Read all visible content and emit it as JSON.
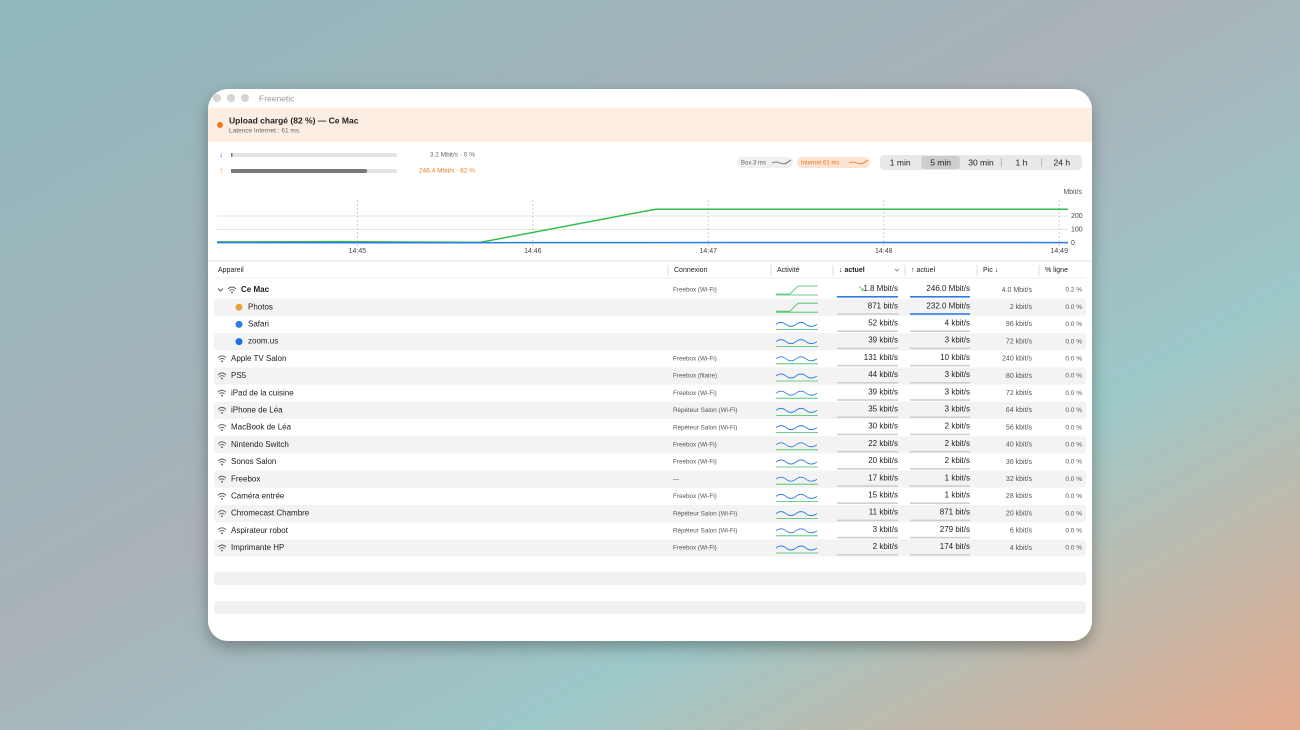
{
  "window_title": "Freenetic",
  "banner": {
    "title": "Upload chargé (82 %) — Ce Mac",
    "subtitle": "Latence Internet : 61 ms."
  },
  "meters": [
    {
      "label": "3.2 Mbit/s · 0 %",
      "percent": 0
    },
    {
      "label": "246.4 Mbit/s · 82 %",
      "percent": 82
    }
  ],
  "chips": [
    "Box 3 ms",
    "Internet 61 ms"
  ],
  "ranges": [
    "1 min",
    "5 min",
    "30 min",
    "1 h",
    "24 h"
  ],
  "selected_range": 1,
  "chart_data": {
    "type": "line",
    "y_label": "Mbit/s",
    "xlim": [
      44.2,
      49.05
    ],
    "xticks": [
      {
        "value": 45,
        "label": "14:45"
      },
      {
        "value": 46,
        "label": "14:46"
      },
      {
        "value": 47,
        "label": "14:47"
      },
      {
        "value": 48,
        "label": "14:48"
      },
      {
        "value": 49,
        "label": "14:49"
      }
    ],
    "ylim": [
      0,
      270
    ],
    "yticks": [
      0,
      100,
      200
    ],
    "series": [
      {
        "color": "#2fbf4f",
        "x": [
          44.2,
          44.9,
          45.7,
          46.7,
          49.05
        ],
        "values": [
          8,
          10,
          5,
          250,
          250
        ]
      },
      {
        "color": "#2f7ce0",
        "x": [
          44.2,
          45.5,
          46.5,
          48,
          49.05
        ],
        "values": [
          3,
          2,
          3,
          4,
          3
        ]
      }
    ]
  },
  "table": {
    "headers": [
      "Appareil",
      "Connexion",
      "Activité",
      "↓ actuel",
      "↑ actuel",
      "Pic ↓",
      "% ligne"
    ],
    "rows": [
      {
        "name": "Ce Mac",
        "connection": "Freebox (Wi-Fi)",
        "down": "1.8 Mbit/s",
        "up": "246.0 Mbit/s",
        "peak": "4.0 Mbit/s",
        "share": "0.2 %",
        "children": [
          {
            "name": "Photos",
            "down": "871 bit/s",
            "up": "232.0 Mbit/s",
            "peak": "2 kbit/s",
            "share": "0.0 %"
          },
          {
            "name": "Safari",
            "down": "52 kbit/s",
            "up": "4 kbit/s",
            "peak": "96 kbit/s",
            "share": "0.0 %"
          },
          {
            "name": "zoom.us",
            "down": "39 kbit/s",
            "up": "3 kbit/s",
            "peak": "72 kbit/s",
            "share": "0.0 %"
          }
        ]
      },
      {
        "name": "Apple TV Salon",
        "connection": "Freebox (Wi-Fi)",
        "down": "131 kbit/s",
        "up": "10 kbit/s",
        "peak": "240 kbit/s",
        "share": "0.0 %"
      },
      {
        "name": "PS5",
        "connection": "Freebox (filaire)",
        "down": "44 kbit/s",
        "up": "3 kbit/s",
        "peak": "80 kbit/s",
        "share": "0.0 %"
      },
      {
        "name": "iPad de la cuisine",
        "connection": "Freebox (Wi-Fi)",
        "down": "39 kbit/s",
        "up": "3 kbit/s",
        "peak": "72 kbit/s",
        "share": "0.0 %"
      },
      {
        "name": "iPhone de Léa",
        "connection": "Répéteur Salon (Wi-Fi)",
        "down": "35 kbit/s",
        "up": "3 kbit/s",
        "peak": "64 kbit/s",
        "share": "0.0 %"
      },
      {
        "name": "MacBook de Léa",
        "connection": "Répéteur Salon (Wi-Fi)",
        "down": "30 kbit/s",
        "up": "2 kbit/s",
        "peak": "56 kbit/s",
        "share": "0.0 %"
      },
      {
        "name": "Nintendo Switch",
        "connection": "Freebox (Wi-Fi)",
        "down": "22 kbit/s",
        "up": "2 kbit/s",
        "peak": "40 kbit/s",
        "share": "0.0 %"
      },
      {
        "name": "Sonos Salon",
        "connection": "Freebox (Wi-Fi)",
        "down": "20 kbit/s",
        "up": "2 kbit/s",
        "peak": "36 kbit/s",
        "share": "0.0 %"
      },
      {
        "name": "Freebox",
        "connection": "—",
        "down": "17 kbit/s",
        "up": "1 kbit/s",
        "peak": "32 kbit/s",
        "share": "0.0 %"
      },
      {
        "name": "Caméra entrée",
        "connection": "Freebox (Wi-Fi)",
        "down": "15 kbit/s",
        "up": "1 kbit/s",
        "peak": "28 kbit/s",
        "share": "0.0 %"
      },
      {
        "name": "Chromecast Chambre",
        "connection": "Répéteur Salon (Wi-Fi)",
        "down": "11 kbit/s",
        "up": "871 bit/s",
        "peak": "20 kbit/s",
        "share": "0.0 %"
      },
      {
        "name": "Aspirateur robot",
        "connection": "Répéteur Salon (Wi-Fi)",
        "down": "3 kbit/s",
        "up": "279 bit/s",
        "peak": "6 kbit/s",
        "share": "0.0 %"
      },
      {
        "name": "Imprimante HP",
        "connection": "Freebox (Wi-Fi)",
        "down": "2 kbit/s",
        "up": "174 bit/s",
        "peak": "4 kbit/s",
        "share": "0.0 %"
      }
    ]
  }
}
